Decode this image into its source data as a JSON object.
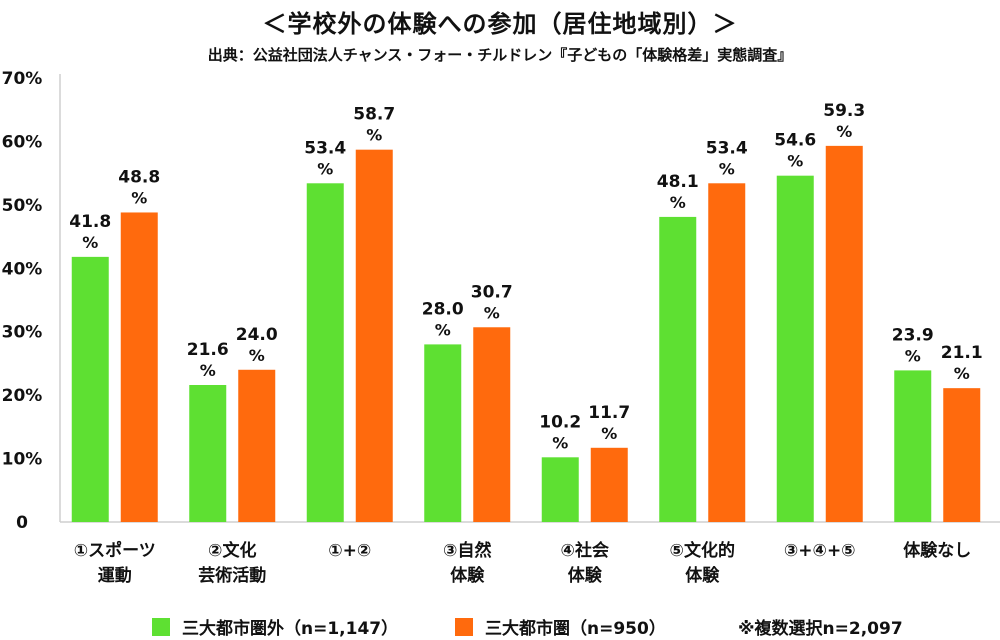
{
  "title": "＜学校外の体験への参加（居住地域別）＞",
  "source": "出典：公益社団法人チャンス・フォー・チルドレン『子どもの「体験格差」実態調査』",
  "colors": {
    "outer": "#5ee032",
    "metro": "#ff6a0d",
    "axis": "#cfcfcf"
  },
  "legend": {
    "items": [
      {
        "label": "三大都市圏外（n=1,147）",
        "color": "#5ee032"
      },
      {
        "label": "三大都市圏（n=950）",
        "color": "#ff6a0d"
      }
    ],
    "note": "※複数選択n=2,097"
  },
  "chart_data": {
    "type": "bar",
    "ylim": [
      0,
      70
    ],
    "yticks": [
      "0",
      "10%",
      "20%",
      "30%",
      "40%",
      "50%",
      "60%",
      "70%"
    ],
    "grid": false,
    "legend_position": "bottom",
    "categories": [
      [
        "①スポーツ",
        "運動"
      ],
      [
        "②文化",
        "芸術活動"
      ],
      [
        "①+②"
      ],
      [
        "③自然",
        "体験"
      ],
      [
        "④社会",
        "体験"
      ],
      [
        "⑤文化的",
        "体験"
      ],
      [
        "③+④+⑤"
      ],
      [
        "体験なし"
      ]
    ],
    "series": [
      {
        "name": "三大都市圏外（n=1,147）",
        "values": [
          41.8,
          21.6,
          53.4,
          28.0,
          10.2,
          48.1,
          54.6,
          23.9
        ]
      },
      {
        "name": "三大都市圏（n=950）",
        "values": [
          48.8,
          24.0,
          58.7,
          30.7,
          11.7,
          53.4,
          59.3,
          21.1
        ]
      }
    ]
  }
}
